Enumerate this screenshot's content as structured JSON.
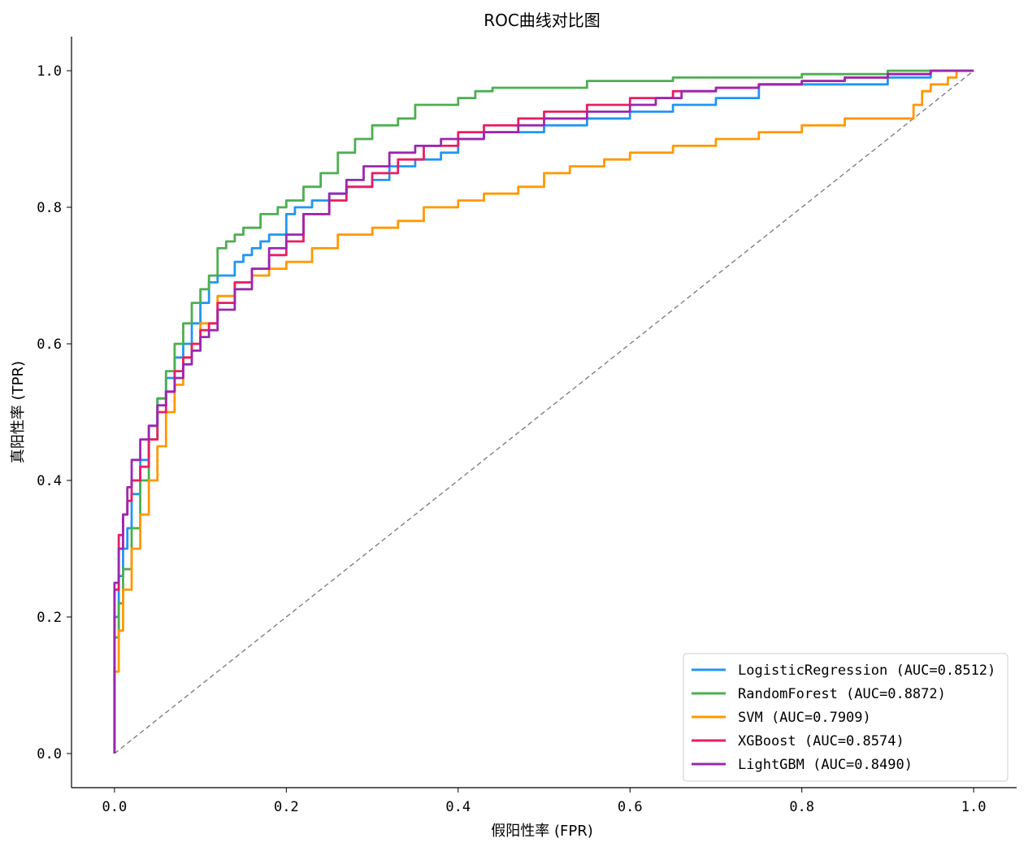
{
  "chart_data": {
    "type": "line",
    "title": "ROC曲线对比图",
    "xlabel": "假阳性率 (FPR)",
    "ylabel": "真阳性率 (TPR)",
    "xlim": [
      -0.05,
      1.05
    ],
    "ylim": [
      -0.05,
      1.05
    ],
    "xticks": [
      "0.0",
      "0.2",
      "0.4",
      "0.6",
      "0.8",
      "1.0"
    ],
    "yticks": [
      "0.0",
      "0.2",
      "0.4",
      "0.6",
      "0.8",
      "1.0"
    ],
    "grid": false,
    "legend_position": "lower-right",
    "diagonal": {
      "x": [
        0,
        1
      ],
      "y": [
        0,
        1
      ],
      "style": "dashed",
      "color": "#808080"
    },
    "series": [
      {
        "name": "LogisticRegression (AUC=0.8512)",
        "color": "#2196F3",
        "x": [
          0,
          0,
          0.005,
          0.01,
          0.015,
          0.02,
          0.03,
          0.04,
          0.05,
          0.06,
          0.07,
          0.08,
          0.09,
          0.1,
          0.11,
          0.12,
          0.14,
          0.15,
          0.16,
          0.17,
          0.18,
          0.2,
          0.21,
          0.22,
          0.23,
          0.25,
          0.27,
          0.3,
          0.32,
          0.35,
          0.38,
          0.4,
          0.43,
          0.45,
          0.5,
          0.55,
          0.6,
          0.65,
          0.7,
          0.75,
          0.8,
          0.85,
          0.9,
          0.95,
          1.0
        ],
        "y": [
          0,
          0.12,
          0.2,
          0.26,
          0.3,
          0.33,
          0.38,
          0.43,
          0.48,
          0.52,
          0.55,
          0.58,
          0.6,
          0.63,
          0.66,
          0.69,
          0.7,
          0.72,
          0.73,
          0.74,
          0.75,
          0.76,
          0.79,
          0.8,
          0.8,
          0.81,
          0.82,
          0.83,
          0.84,
          0.86,
          0.87,
          0.88,
          0.9,
          0.91,
          0.91,
          0.92,
          0.93,
          0.94,
          0.95,
          0.96,
          0.98,
          0.98,
          0.98,
          0.99,
          1.0
        ]
      },
      {
        "name": "RandomForest (AUC=0.8872)",
        "color": "#4CAF50",
        "x": [
          0,
          0,
          0.005,
          0.01,
          0.02,
          0.03,
          0.04,
          0.05,
          0.06,
          0.07,
          0.08,
          0.09,
          0.1,
          0.11,
          0.12,
          0.13,
          0.14,
          0.15,
          0.17,
          0.19,
          0.2,
          0.22,
          0.24,
          0.26,
          0.28,
          0.3,
          0.33,
          0.35,
          0.38,
          0.4,
          0.42,
          0.44,
          0.46,
          0.5,
          0.55,
          0.6,
          0.65,
          0.7,
          0.8,
          0.9,
          0.92,
          1.0
        ],
        "y": [
          0,
          0.1,
          0.17,
          0.22,
          0.27,
          0.33,
          0.4,
          0.46,
          0.52,
          0.56,
          0.6,
          0.63,
          0.66,
          0.68,
          0.7,
          0.74,
          0.75,
          0.76,
          0.77,
          0.79,
          0.8,
          0.81,
          0.83,
          0.85,
          0.88,
          0.9,
          0.92,
          0.93,
          0.95,
          0.95,
          0.96,
          0.97,
          0.975,
          0.975,
          0.975,
          0.985,
          0.985,
          0.99,
          0.99,
          0.995,
          1.0,
          1.0
        ]
      },
      {
        "name": "SVM (AUC=0.7909)",
        "color": "#FF9800",
        "x": [
          0,
          0,
          0.005,
          0.01,
          0.02,
          0.03,
          0.04,
          0.05,
          0.06,
          0.07,
          0.08,
          0.09,
          0.1,
          0.12,
          0.14,
          0.16,
          0.18,
          0.2,
          0.23,
          0.26,
          0.3,
          0.33,
          0.36,
          0.4,
          0.43,
          0.47,
          0.5,
          0.53,
          0.57,
          0.6,
          0.65,
          0.7,
          0.75,
          0.8,
          0.85,
          0.9,
          0.93,
          0.94,
          0.95,
          0.97,
          0.98,
          1.0
        ],
        "y": [
          0,
          0.06,
          0.12,
          0.18,
          0.24,
          0.3,
          0.35,
          0.4,
          0.45,
          0.5,
          0.54,
          0.58,
          0.6,
          0.63,
          0.67,
          0.69,
          0.7,
          0.71,
          0.72,
          0.74,
          0.76,
          0.77,
          0.78,
          0.8,
          0.81,
          0.82,
          0.83,
          0.85,
          0.86,
          0.87,
          0.88,
          0.89,
          0.9,
          0.91,
          0.92,
          0.93,
          0.93,
          0.95,
          0.97,
          0.98,
          0.99,
          1.0
        ]
      },
      {
        "name": "XGBoost (AUC=0.8574)",
        "color": "#E91E63",
        "x": [
          0,
          0,
          0.005,
          0.01,
          0.015,
          0.02,
          0.03,
          0.04,
          0.05,
          0.06,
          0.07,
          0.08,
          0.09,
          0.1,
          0.11,
          0.12,
          0.14,
          0.16,
          0.18,
          0.2,
          0.22,
          0.25,
          0.27,
          0.3,
          0.33,
          0.36,
          0.4,
          0.43,
          0.47,
          0.5,
          0.55,
          0.6,
          0.65,
          0.7,
          0.75,
          0.8,
          0.85,
          0.9,
          0.95,
          1.0
        ],
        "y": [
          0,
          0.14,
          0.24,
          0.32,
          0.35,
          0.37,
          0.4,
          0.42,
          0.46,
          0.5,
          0.53,
          0.56,
          0.58,
          0.6,
          0.62,
          0.63,
          0.66,
          0.69,
          0.71,
          0.73,
          0.75,
          0.79,
          0.81,
          0.83,
          0.85,
          0.87,
          0.89,
          0.91,
          0.92,
          0.93,
          0.94,
          0.95,
          0.96,
          0.97,
          0.975,
          0.98,
          0.985,
          0.99,
          0.995,
          1.0
        ]
      },
      {
        "name": "LightGBM (AUC=0.8490)",
        "color": "#9C27B0",
        "x": [
          0,
          0,
          0.005,
          0.01,
          0.015,
          0.02,
          0.03,
          0.04,
          0.05,
          0.06,
          0.07,
          0.08,
          0.09,
          0.1,
          0.11,
          0.12,
          0.14,
          0.16,
          0.18,
          0.2,
          0.22,
          0.25,
          0.27,
          0.29,
          0.32,
          0.35,
          0.38,
          0.4,
          0.43,
          0.47,
          0.5,
          0.55,
          0.6,
          0.63,
          0.66,
          0.7,
          0.75,
          0.8,
          0.85,
          0.9,
          0.95,
          1.0
        ],
        "y": [
          0,
          0.15,
          0.25,
          0.3,
          0.35,
          0.39,
          0.43,
          0.46,
          0.48,
          0.51,
          0.53,
          0.55,
          0.57,
          0.59,
          0.61,
          0.62,
          0.65,
          0.68,
          0.71,
          0.74,
          0.76,
          0.79,
          0.82,
          0.84,
          0.86,
          0.88,
          0.89,
          0.9,
          0.9,
          0.91,
          0.92,
          0.93,
          0.94,
          0.95,
          0.96,
          0.97,
          0.975,
          0.98,
          0.985,
          0.99,
          0.995,
          1.0
        ]
      }
    ]
  }
}
